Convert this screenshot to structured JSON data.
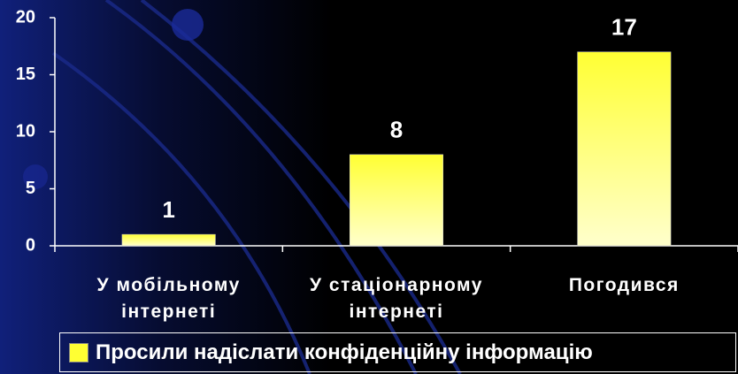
{
  "chart_data": {
    "type": "bar",
    "categories": [
      "У мобільному інтернеті",
      "У стаціонарному інтернеті",
      "Погодився"
    ],
    "series": [
      {
        "name": "Просили надіслати конфіденційну інформацію",
        "color": "#ffff33",
        "values": [
          1,
          8,
          17
        ]
      }
    ],
    "ylim": [
      0,
      20
    ],
    "yticks": [
      0,
      5,
      10,
      15,
      20
    ],
    "grid": false,
    "legend": "bottom"
  }
}
